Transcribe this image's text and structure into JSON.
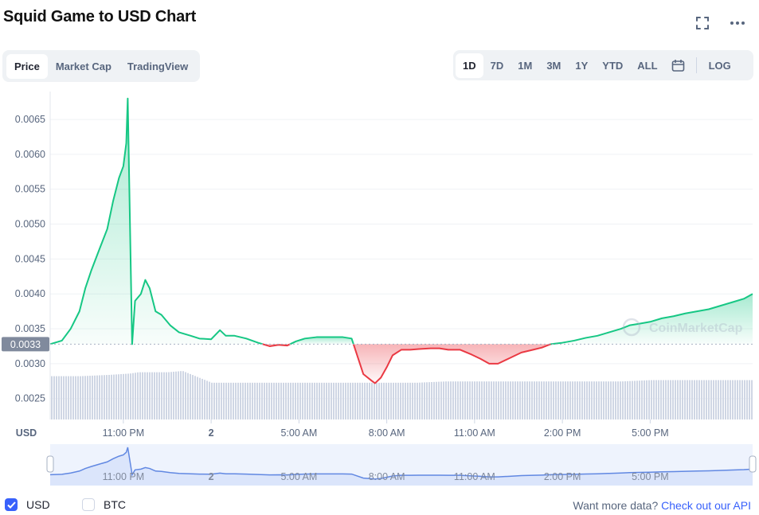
{
  "header": {
    "title": "Squid Game to USD Chart"
  },
  "icons": {
    "fullscreen": "fullscreen-icon",
    "more": "more-icon",
    "calendar": "calendar-icon",
    "checkmark": "checkmark-icon"
  },
  "tabs": [
    {
      "label": "Price",
      "active": true
    },
    {
      "label": "Market Cap",
      "active": false
    },
    {
      "label": "TradingView",
      "active": false
    }
  ],
  "ranges": [
    {
      "label": "1D",
      "active": true
    },
    {
      "label": "7D",
      "active": false
    },
    {
      "label": "1M",
      "active": false
    },
    {
      "label": "3M",
      "active": false
    },
    {
      "label": "1Y",
      "active": false
    },
    {
      "label": "YTD",
      "active": false
    },
    {
      "label": "ALL",
      "active": false
    }
  ],
  "log_label": "LOG",
  "legend": {
    "usd": {
      "label": "USD",
      "checked": true
    },
    "btc": {
      "label": "BTC",
      "checked": false
    }
  },
  "footer": {
    "prompt": "Want more data?",
    "link": "Check out our API"
  },
  "colors": {
    "up": "#16c784",
    "down": "#ea3943",
    "accent": "#3861fb",
    "volume": "#cfd6e4",
    "navigator": "#6188e2"
  },
  "chart_data": {
    "type": "line",
    "title": "Squid Game to USD Chart",
    "currency_label": "USD",
    "watermark": "CoinMarketCap",
    "baseline_label": "0.0033",
    "baseline_value": 0.00328,
    "ylim": [
      0.0022,
      0.0069
    ],
    "y_ticks": [
      "0.0025",
      "0.0030",
      "0.0035",
      "0.0040",
      "0.0045",
      "0.0050",
      "0.0055",
      "0.0060",
      "0.0065"
    ],
    "x_range": [
      20.5,
      44.5
    ],
    "x_ticks": [
      {
        "label": "11:00 PM",
        "t": 23.0
      },
      {
        "label": "2",
        "t": 26.0
      },
      {
        "label": "5:00 AM",
        "t": 29.0
      },
      {
        "label": "8:00 AM",
        "t": 32.0
      },
      {
        "label": "11:00 AM",
        "t": 35.0
      },
      {
        "label": "2:00 PM",
        "t": 38.0
      },
      {
        "label": "5:00 PM",
        "t": 41.0
      }
    ],
    "series": [
      {
        "t": [
          20.5,
          20.9,
          21.2,
          21.5,
          21.7,
          21.9,
          22.2,
          22.45,
          22.65,
          22.85,
          23.0,
          23.1,
          23.15,
          23.3,
          23.4,
          23.6,
          23.75,
          23.9,
          24.1,
          24.3,
          24.6,
          24.9,
          25.3,
          25.6,
          26.0,
          26.3,
          26.5,
          26.8,
          27.2,
          27.6,
          28.0,
          28.3,
          28.6,
          28.9,
          29.2,
          29.6,
          30.0,
          30.3,
          30.5,
          30.8,
          31.2,
          31.5,
          31.6,
          31.8,
          32.0,
          32.2,
          32.5,
          32.8,
          33.1,
          33.5,
          33.8,
          34.1,
          34.5,
          34.9,
          35.2,
          35.5,
          35.8,
          36.2,
          36.6,
          37.0,
          37.3,
          37.6,
          38.0,
          38.4,
          38.8,
          39.2,
          39.6,
          40.0,
          40.3,
          40.6,
          41.0,
          41.4,
          41.8,
          42.2,
          42.6,
          43.0,
          43.4,
          43.8,
          44.2,
          44.5
        ],
        "y": [
          0.00328,
          0.00333,
          0.0035,
          0.00375,
          0.00408,
          0.00433,
          0.00466,
          0.00493,
          0.00533,
          0.00566,
          0.00583,
          0.00616,
          0.0068,
          0.00328,
          0.0039,
          0.004,
          0.0042,
          0.00408,
          0.00375,
          0.0037,
          0.00355,
          0.00345,
          0.0034,
          0.00336,
          0.00335,
          0.00348,
          0.0034,
          0.0034,
          0.00336,
          0.0033,
          0.00325,
          0.00327,
          0.00326,
          0.00332,
          0.00336,
          0.00338,
          0.00338,
          0.00338,
          0.00338,
          0.00336,
          0.00285,
          0.00275,
          0.00272,
          0.0028,
          0.00295,
          0.00312,
          0.0032,
          0.0032,
          0.00321,
          0.00322,
          0.00322,
          0.0032,
          0.0032,
          0.00313,
          0.00307,
          0.003,
          0.003,
          0.00308,
          0.00316,
          0.0032,
          0.00323,
          0.00328,
          0.0033,
          0.00333,
          0.00337,
          0.0034,
          0.00345,
          0.0035,
          0.00355,
          0.00357,
          0.0036,
          0.00365,
          0.00368,
          0.00372,
          0.00375,
          0.00378,
          0.00383,
          0.00388,
          0.00393,
          0.004
        ]
      }
    ],
    "volume": {
      "t": [
        20.5,
        21.5,
        22.5,
        23.2,
        23.5,
        24.5,
        25.0,
        26.0,
        27.0,
        28.0,
        29.0,
        30.0,
        31.0,
        32.0,
        33.0,
        34.0,
        35.0,
        36.0,
        37.0,
        38.0,
        39.0,
        40.0,
        41.0,
        42.0,
        43.0,
        44.0,
        44.5
      ],
      "v": [
        0.33,
        0.33,
        0.34,
        0.35,
        0.36,
        0.36,
        0.37,
        0.28,
        0.28,
        0.28,
        0.28,
        0.28,
        0.28,
        0.28,
        0.28,
        0.29,
        0.29,
        0.29,
        0.29,
        0.29,
        0.29,
        0.29,
        0.3,
        0.3,
        0.3,
        0.3,
        0.3
      ]
    }
  }
}
